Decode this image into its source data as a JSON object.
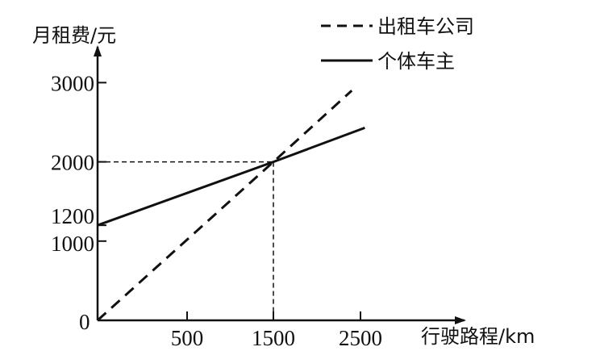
{
  "chart_data": {
    "type": "line",
    "ylabel": "月租费/元",
    "xlabel": "行驶路程/km",
    "x_ticks": [
      500,
      1500,
      2500
    ],
    "y_ticks": [
      0,
      1000,
      1200,
      2000,
      3000
    ],
    "origin_label": "0",
    "grid": false,
    "legend_placement": "top-right",
    "series": [
      {
        "name": "出租车公司",
        "style": "dashed",
        "color": "#111111",
        "points": [
          [
            0,
            0
          ],
          [
            1500,
            2000
          ],
          [
            2400,
            2900
          ]
        ]
      },
      {
        "name": "个体车主",
        "style": "solid",
        "color": "#111111",
        "points": [
          [
            0,
            1200
          ],
          [
            1500,
            2000
          ],
          [
            2550,
            2430
          ]
        ]
      }
    ],
    "annotations": [
      {
        "type": "dashed-guides",
        "point": [
          1500,
          2000
        ]
      }
    ]
  }
}
